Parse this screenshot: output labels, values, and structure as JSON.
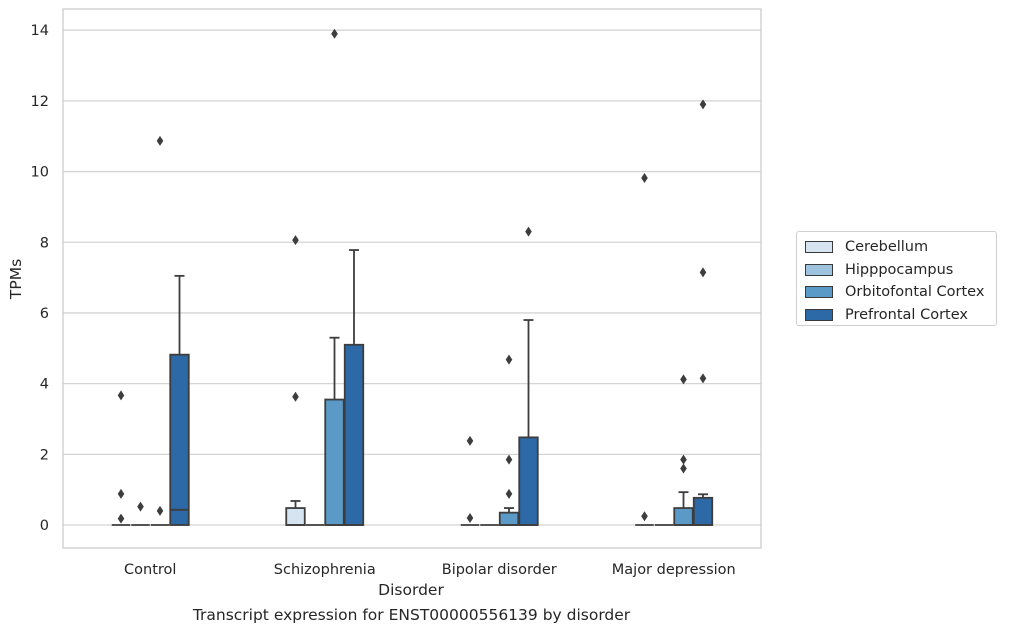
{
  "chart_data": {
    "type": "box",
    "caption": "Transcript expression for ENST00000556139 by disorder",
    "xlabel": "Disorder",
    "ylabel": "TPMs",
    "categories": [
      "Control",
      "Schizophrenia",
      "Bipolar disorder",
      "Major depression"
    ],
    "ylim": [
      -0.65,
      14.6
    ],
    "yticks": [
      "0",
      "2",
      "4",
      "6",
      "8",
      "10",
      "12",
      "14"
    ],
    "grid": true,
    "legend_placement": "right",
    "series": [
      {
        "name": "Cerebellum",
        "color": "#d6e4f1",
        "boxes": [
          {
            "q1": 0,
            "median": 0,
            "q3": 0,
            "whislo": 0,
            "whishi": 0,
            "fliers": [
              0.18,
              0.88,
              3.67
            ]
          },
          {
            "q1": 0,
            "median": 0,
            "q3": 0.48,
            "whislo": 0,
            "whishi": 0.68,
            "fliers": [
              3.63,
              8.06
            ]
          },
          {
            "q1": 0,
            "median": 0,
            "q3": 0,
            "whislo": 0,
            "whishi": 0,
            "fliers": [
              0.2,
              2.38
            ]
          },
          {
            "q1": 0,
            "median": 0,
            "q3": 0,
            "whislo": 0,
            "whishi": 0,
            "fliers": [
              0.25,
              9.82
            ]
          }
        ]
      },
      {
        "name": "Hipppocampus",
        "color": "#9dc3df",
        "boxes": [
          {
            "q1": 0,
            "median": 0,
            "q3": 0,
            "whislo": 0,
            "whishi": 0,
            "fliers": [
              0.52
            ]
          },
          {
            "q1": 0,
            "median": 0,
            "q3": 0,
            "whislo": 0,
            "whishi": 0,
            "fliers": []
          },
          {
            "q1": 0,
            "median": 0,
            "q3": 0,
            "whislo": 0,
            "whishi": 0,
            "fliers": []
          },
          {
            "q1": 0,
            "median": 0,
            "q3": 0,
            "whislo": 0,
            "whishi": 0,
            "fliers": []
          }
        ]
      },
      {
        "name": "Orbitofontal Cortex",
        "color": "#5b99c6",
        "boxes": [
          {
            "q1": 0,
            "median": 0,
            "q3": 0,
            "whislo": 0,
            "whishi": 0,
            "fliers": [
              0.4,
              10.87
            ]
          },
          {
            "q1": 0,
            "median": 0,
            "q3": 3.55,
            "whislo": 0,
            "whishi": 5.3,
            "fliers": [
              13.9
            ]
          },
          {
            "q1": 0,
            "median": 0,
            "q3": 0.35,
            "whislo": 0,
            "whishi": 0.48,
            "fliers": [
              0.88,
              1.85,
              4.68
            ]
          },
          {
            "q1": 0,
            "median": 0,
            "q3": 0.48,
            "whislo": 0,
            "whishi": 0.93,
            "fliers": [
              1.6,
              1.85,
              4.12
            ]
          }
        ]
      },
      {
        "name": "Prefrontal Cortex",
        "color": "#2c69a6",
        "boxes": [
          {
            "q1": 0,
            "median": 0.43,
            "q3": 4.82,
            "whislo": 0,
            "whishi": 7.05,
            "fliers": []
          },
          {
            "q1": 0,
            "median": 0,
            "q3": 5.1,
            "whislo": 0,
            "whishi": 7.78,
            "fliers": []
          },
          {
            "q1": 0,
            "median": 0,
            "q3": 2.48,
            "whislo": 0,
            "whishi": 5.8,
            "fliers": [
              8.3
            ]
          },
          {
            "q1": 0,
            "median": 0,
            "q3": 0.77,
            "whislo": 0,
            "whishi": 0.87,
            "fliers": [
              4.15,
              7.15,
              11.9
            ]
          }
        ]
      }
    ]
  }
}
